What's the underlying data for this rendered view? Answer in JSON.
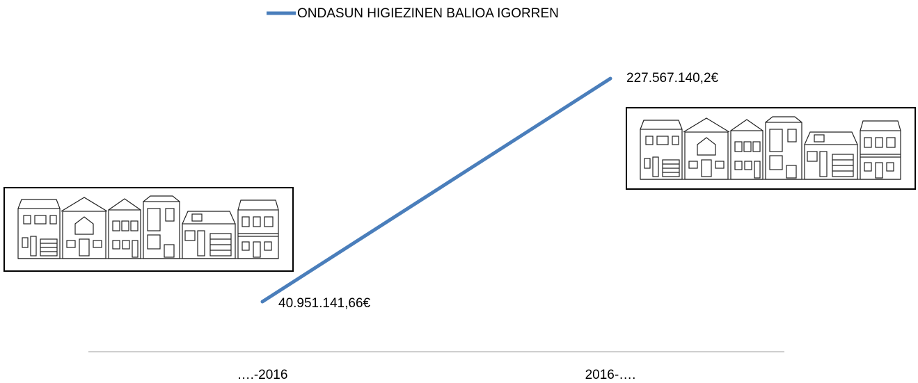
{
  "chart_data": {
    "type": "line",
    "categories": [
      "….-2016",
      "2016-…."
    ],
    "series": [
      {
        "name": "ONDASUN HIGIEZINEN BALIOA IGORREN",
        "color": "#4a7ebb",
        "values": [
          40951141.66,
          227567140.2
        ],
        "value_labels": [
          "40.951.141,66€",
          "227.567.140,2€"
        ]
      }
    ]
  }
}
